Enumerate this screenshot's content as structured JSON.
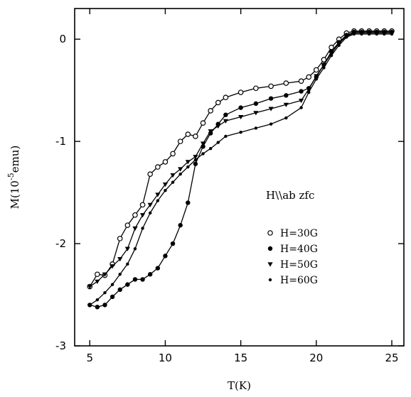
{
  "chart_data": {
    "type": "line",
    "xlabel": "T(K)",
    "ylabel": "M(10",
    "ylabel_sup": "-5",
    "ylabel_tail": "emu)",
    "annotation": "H\\\\ab zfc",
    "xlim": [
      4,
      25.8
    ],
    "ylim": [
      -3,
      0.3
    ],
    "xticks": [
      5,
      10,
      15,
      20,
      25
    ],
    "yticks": [
      0,
      -1,
      -2,
      -3
    ],
    "legend_position": "lower-right",
    "grid": false,
    "series": [
      {
        "name": "H=30G",
        "marker": "open-circle",
        "points": [
          [
            5,
            -2.42
          ],
          [
            5.5,
            -2.3
          ],
          [
            6,
            -2.31
          ],
          [
            6.5,
            -2.2
          ],
          [
            7,
            -1.95
          ],
          [
            7.5,
            -1.82
          ],
          [
            8,
            -1.72
          ],
          [
            8.5,
            -1.62
          ],
          [
            9,
            -1.32
          ],
          [
            9.5,
            -1.25
          ],
          [
            10,
            -1.2
          ],
          [
            10.5,
            -1.12
          ],
          [
            11,
            -1.0
          ],
          [
            11.5,
            -0.93
          ],
          [
            12,
            -0.95
          ],
          [
            12.5,
            -0.82
          ],
          [
            13,
            -0.7
          ],
          [
            13.5,
            -0.62
          ],
          [
            14,
            -0.57
          ],
          [
            15,
            -0.52
          ],
          [
            16,
            -0.48
          ],
          [
            17,
            -0.46
          ],
          [
            18,
            -0.43
          ],
          [
            19,
            -0.41
          ],
          [
            19.5,
            -0.37
          ],
          [
            20,
            -0.3
          ],
          [
            20.5,
            -0.2
          ],
          [
            21,
            -0.08
          ],
          [
            21.5,
            0.0
          ],
          [
            22,
            0.06
          ],
          [
            22.5,
            0.08
          ],
          [
            23,
            0.08
          ],
          [
            23.5,
            0.08
          ],
          [
            24,
            0.08
          ],
          [
            24.5,
            0.08
          ],
          [
            25,
            0.08
          ]
        ]
      },
      {
        "name": "H=40G",
        "marker": "filled-circle",
        "points": [
          [
            5,
            -2.6
          ],
          [
            5.5,
            -2.62
          ],
          [
            6,
            -2.6
          ],
          [
            6.5,
            -2.52
          ],
          [
            7,
            -2.45
          ],
          [
            7.5,
            -2.4
          ],
          [
            8,
            -2.35
          ],
          [
            8.5,
            -2.35
          ],
          [
            9,
            -2.3
          ],
          [
            9.5,
            -2.24
          ],
          [
            10,
            -2.12
          ],
          [
            10.5,
            -2.0
          ],
          [
            11,
            -1.82
          ],
          [
            11.5,
            -1.6
          ],
          [
            12,
            -1.22
          ],
          [
            12.5,
            -1.05
          ],
          [
            13,
            -0.92
          ],
          [
            13.5,
            -0.83
          ],
          [
            14,
            -0.74
          ],
          [
            15,
            -0.67
          ],
          [
            16,
            -0.63
          ],
          [
            17,
            -0.58
          ],
          [
            18,
            -0.55
          ],
          [
            19,
            -0.51
          ],
          [
            19.5,
            -0.48
          ],
          [
            20,
            -0.37
          ],
          [
            20.5,
            -0.25
          ],
          [
            21,
            -0.12
          ],
          [
            21.5,
            -0.03
          ],
          [
            22,
            0.04
          ],
          [
            22.5,
            0.07
          ],
          [
            23,
            0.07
          ],
          [
            23.5,
            0.07
          ],
          [
            24,
            0.07
          ],
          [
            24.5,
            0.07
          ],
          [
            25,
            0.07
          ]
        ]
      },
      {
        "name": "H=50G",
        "marker": "filled-triangle",
        "points": [
          [
            5,
            -2.42
          ],
          [
            5.5,
            -2.37
          ],
          [
            6,
            -2.3
          ],
          [
            6.5,
            -2.22
          ],
          [
            7,
            -2.15
          ],
          [
            7.5,
            -2.05
          ],
          [
            8,
            -1.85
          ],
          [
            8.5,
            -1.72
          ],
          [
            9,
            -1.62
          ],
          [
            9.5,
            -1.52
          ],
          [
            10,
            -1.42
          ],
          [
            10.5,
            -1.33
          ],
          [
            11,
            -1.27
          ],
          [
            11.5,
            -1.2
          ],
          [
            12,
            -1.15
          ],
          [
            12.5,
            -1.02
          ],
          [
            13,
            -0.9
          ],
          [
            13.5,
            -0.85
          ],
          [
            14,
            -0.8
          ],
          [
            15,
            -0.76
          ],
          [
            16,
            -0.72
          ],
          [
            17,
            -0.68
          ],
          [
            18,
            -0.64
          ],
          [
            19,
            -0.6
          ],
          [
            19.5,
            -0.49
          ],
          [
            20,
            -0.36
          ],
          [
            20.5,
            -0.25
          ],
          [
            21,
            -0.14
          ],
          [
            21.5,
            -0.04
          ],
          [
            22,
            0.03
          ],
          [
            22.5,
            0.06
          ],
          [
            23,
            0.06
          ],
          [
            23.5,
            0.06
          ],
          [
            24,
            0.06
          ],
          [
            24.5,
            0.06
          ],
          [
            25,
            0.06
          ]
        ]
      },
      {
        "name": "H=60G",
        "marker": "small-dot",
        "points": [
          [
            5,
            -2.6
          ],
          [
            5.5,
            -2.55
          ],
          [
            6,
            -2.48
          ],
          [
            6.5,
            -2.4
          ],
          [
            7,
            -2.3
          ],
          [
            7.5,
            -2.2
          ],
          [
            8,
            -2.05
          ],
          [
            8.5,
            -1.85
          ],
          [
            9,
            -1.7
          ],
          [
            9.5,
            -1.58
          ],
          [
            10,
            -1.48
          ],
          [
            10.5,
            -1.4
          ],
          [
            11,
            -1.32
          ],
          [
            11.5,
            -1.25
          ],
          [
            12,
            -1.18
          ],
          [
            12.5,
            -1.12
          ],
          [
            13,
            -1.07
          ],
          [
            13.5,
            -1.01
          ],
          [
            14,
            -0.95
          ],
          [
            15,
            -0.91
          ],
          [
            16,
            -0.87
          ],
          [
            17,
            -0.83
          ],
          [
            18,
            -0.77
          ],
          [
            19,
            -0.67
          ],
          [
            19.5,
            -0.52
          ],
          [
            20,
            -0.39
          ],
          [
            20.5,
            -0.28
          ],
          [
            21,
            -0.16
          ],
          [
            21.5,
            -0.06
          ],
          [
            22,
            0.02
          ],
          [
            22.5,
            0.05
          ],
          [
            23,
            0.05
          ],
          [
            23.5,
            0.05
          ],
          [
            24,
            0.05
          ],
          [
            24.5,
            0.05
          ],
          [
            25,
            0.05
          ]
        ]
      }
    ]
  }
}
